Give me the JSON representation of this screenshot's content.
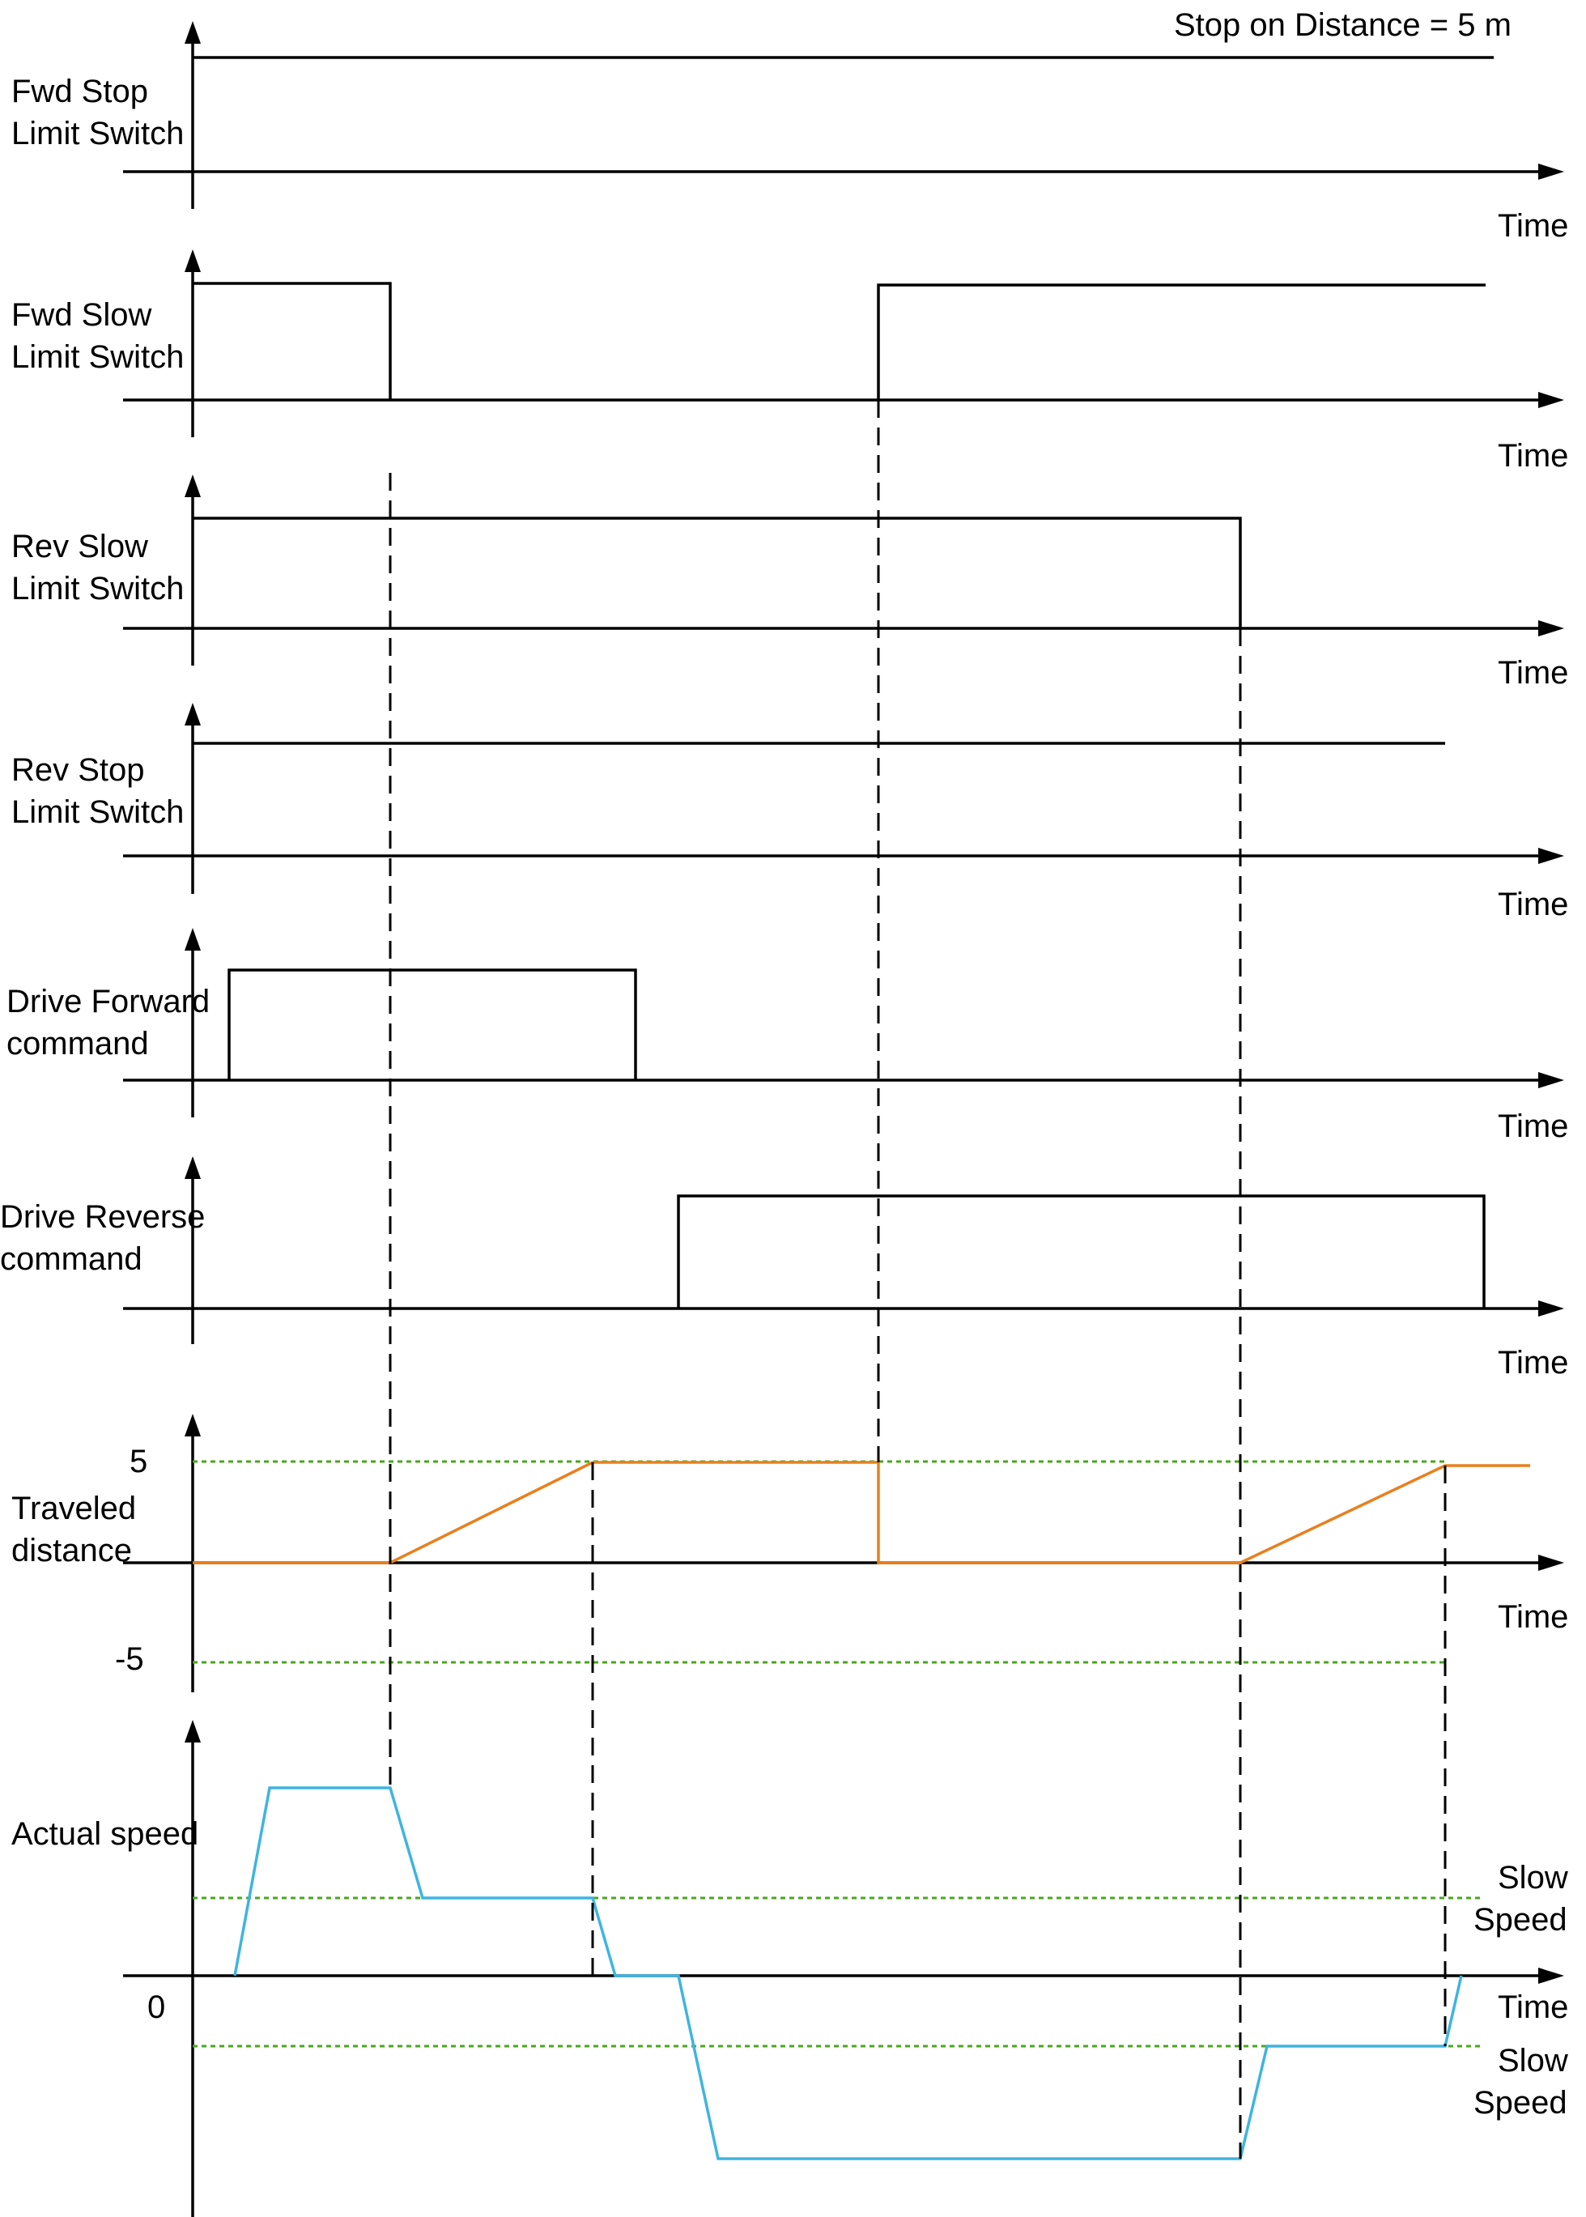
{
  "title": "Stop on Distance = 5 m",
  "time_label": "Time",
  "colors": {
    "signal": "#000000",
    "distance": "#e8801e",
    "speed": "#3fb4e0",
    "reference": "#4aa61e"
  },
  "signals": [
    {
      "label_line1": "Fwd Stop",
      "label_line2": "Limit Switch"
    },
    {
      "label_line1": "Fwd Slow",
      "label_line2": "Limit Switch"
    },
    {
      "label_line1": "Rev Slow",
      "label_line2": "Limit Switch"
    },
    {
      "label_line1": "Rev Stop",
      "label_line2": "Limit Switch"
    },
    {
      "label_line1": "Drive Forward",
      "label_line2": "command"
    },
    {
      "label_line1": "Drive Reverse",
      "label_line2": "command"
    }
  ],
  "distance": {
    "label_line1": "Traveled",
    "label_line2": "distance",
    "tick_pos": "5",
    "tick_neg": "-5"
  },
  "speed": {
    "label": "Actual speed",
    "zero": "0",
    "slow_upper_line1": "Slow",
    "slow_upper_line2": "Speed",
    "slow_lower_line1": "Slow",
    "slow_lower_line2": "Speed"
  }
}
